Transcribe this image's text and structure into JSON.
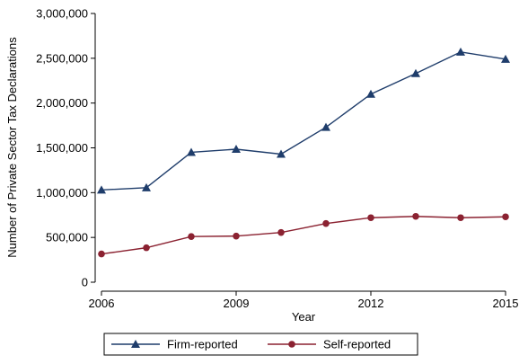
{
  "chart_data": {
    "type": "line",
    "title": "",
    "xlabel": "Year",
    "ylabel": "Number of Private Sector Tax Declarations",
    "xlim": [
      2006,
      2015
    ],
    "ylim": [
      0,
      3000000
    ],
    "x_ticks": [
      2006,
      2009,
      2012,
      2015
    ],
    "y_ticks": [
      0,
      500000,
      1000000,
      1500000,
      2000000,
      2500000,
      3000000
    ],
    "y_tick_labels": [
      "0",
      "500,000",
      "1,000,000",
      "1,500,000",
      "2,000,000",
      "2,500,000",
      "3,000,000"
    ],
    "x": [
      2006,
      2007,
      2008,
      2009,
      2010,
      2011,
      2012,
      2013,
      2014,
      2015
    ],
    "series": [
      {
        "name": "Firm-reported",
        "marker": "triangle",
        "color": "#1f3d6b",
        "values": [
          1030000,
          1055000,
          1450000,
          1485000,
          1430000,
          1730000,
          2100000,
          2330000,
          2570000,
          2490000
        ]
      },
      {
        "name": "Self-reported",
        "marker": "circle",
        "color": "#8b2231",
        "values": [
          315000,
          385000,
          510000,
          515000,
          555000,
          655000,
          720000,
          735000,
          720000,
          730000
        ]
      }
    ],
    "grid": false,
    "legend": "bottom"
  }
}
